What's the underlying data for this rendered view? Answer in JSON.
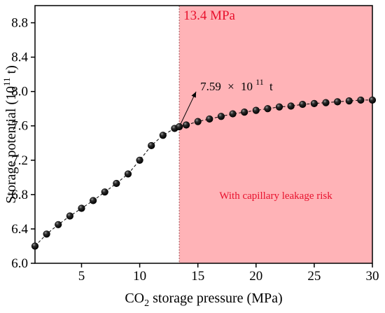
{
  "chart_data": {
    "type": "scatter",
    "xlabel": "CO2 storage pressure (MPa)",
    "ylabel": "Storage potential (10^11 t)",
    "xlim": [
      1,
      30
    ],
    "ylim": [
      6.0,
      9.0
    ],
    "x_ticks": [
      5,
      10,
      15,
      20,
      25,
      30
    ],
    "y_ticks": [
      6.0,
      6.4,
      6.8,
      7.2,
      7.6,
      8.0,
      8.4,
      8.8
    ],
    "x_tick_labels": [
      "5",
      "10",
      "15",
      "20",
      "25",
      "30"
    ],
    "y_tick_labels": [
      "6.0",
      "6.4",
      "6.8",
      "7.2",
      "7.6",
      "8.0",
      "8.4",
      "8.8"
    ],
    "grid": false,
    "series": [
      {
        "x": [
          1,
          2,
          3,
          4,
          5,
          6,
          7,
          8,
          9,
          10,
          11,
          12,
          13,
          13.4,
          14,
          15,
          16,
          17,
          18,
          19,
          20,
          21,
          22,
          23,
          24,
          25,
          26,
          27,
          28,
          29,
          30
        ],
        "y": [
          6.2,
          6.34,
          6.45,
          6.55,
          6.64,
          6.73,
          6.83,
          6.93,
          7.04,
          7.2,
          7.37,
          7.49,
          7.57,
          7.59,
          7.61,
          7.65,
          7.68,
          7.71,
          7.74,
          7.76,
          7.78,
          7.8,
          7.82,
          7.83,
          7.85,
          7.86,
          7.87,
          7.88,
          7.89,
          7.9,
          7.9
        ],
        "color": "#000000"
      }
    ],
    "threshold": {
      "x": 13.4,
      "label": "13.4 MPa",
      "region_label": "With capillary leakage risk",
      "region_color": "#ffb3b7",
      "line_color": "#a05a5e"
    },
    "annotation": {
      "x": 13.4,
      "y": 7.59,
      "label_mantissa": "7.59",
      "label_times": "×",
      "label_base": "10",
      "label_exp": "11",
      "label_unit": "t"
    }
  }
}
